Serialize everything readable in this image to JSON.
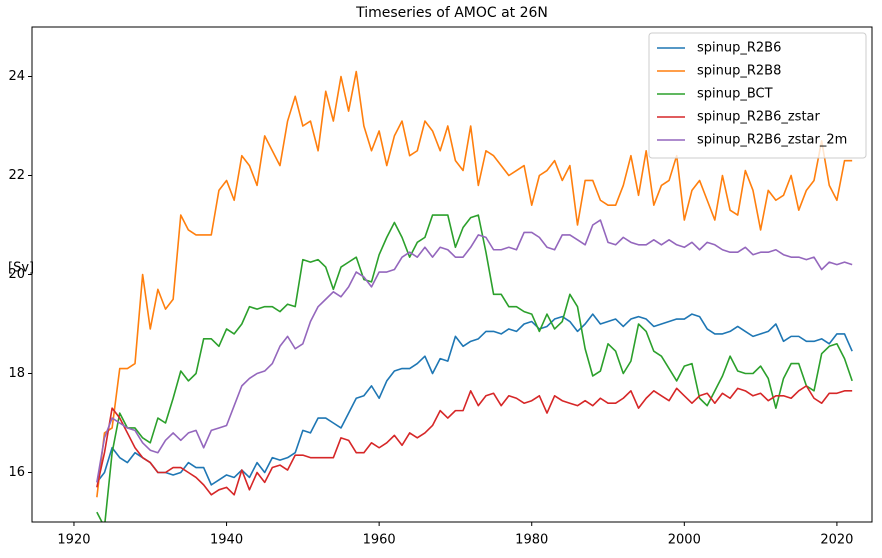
{
  "chart_data": {
    "type": "line",
    "title": "Timeseries of AMOC at 26N",
    "ylabel": "[Sv]",
    "x": [
      1923,
      1924,
      1925,
      1926,
      1927,
      1928,
      1929,
      1930,
      1931,
      1932,
      1933,
      1934,
      1935,
      1936,
      1937,
      1938,
      1939,
      1940,
      1941,
      1942,
      1943,
      1944,
      1945,
      1946,
      1947,
      1948,
      1949,
      1950,
      1951,
      1952,
      1953,
      1954,
      1955,
      1956,
      1957,
      1958,
      1959,
      1960,
      1961,
      1962,
      1963,
      1964,
      1965,
      1966,
      1967,
      1968,
      1969,
      1970,
      1971,
      1972,
      1973,
      1974,
      1975,
      1976,
      1977,
      1978,
      1979,
      1980,
      1981,
      1982,
      1983,
      1984,
      1985,
      1986,
      1987,
      1988,
      1989,
      1990,
      1991,
      1992,
      1993,
      1994,
      1995,
      1996,
      1997,
      1998,
      1999,
      2000,
      2001,
      2002,
      2003,
      2004,
      2005,
      2006,
      2007,
      2008,
      2009,
      2010,
      2011,
      2012,
      2013,
      2014,
      2015,
      2016,
      2017,
      2018,
      2019,
      2020,
      2021,
      2022
    ],
    "series": [
      {
        "name": "spinup_R2B6",
        "color": "#1f77b4",
        "values": [
          15.8,
          16.0,
          16.5,
          16.3,
          16.2,
          16.4,
          16.3,
          16.2,
          16.0,
          16.0,
          15.95,
          16.0,
          16.2,
          16.1,
          16.1,
          15.75,
          15.85,
          15.95,
          15.9,
          16.05,
          15.9,
          16.2,
          16.0,
          16.3,
          16.25,
          16.3,
          16.4,
          16.85,
          16.8,
          17.1,
          17.1,
          17.0,
          16.9,
          17.2,
          17.5,
          17.55,
          17.75,
          17.5,
          17.85,
          18.05,
          18.1,
          18.1,
          18.2,
          18.35,
          18.0,
          18.3,
          18.25,
          18.75,
          18.55,
          18.65,
          18.7,
          18.85,
          18.85,
          18.8,
          18.9,
          18.85,
          19.0,
          19.05,
          18.9,
          18.95,
          19.1,
          19.15,
          19.05,
          18.85,
          19.0,
          19.2,
          19.0,
          19.05,
          19.1,
          18.95,
          19.1,
          19.15,
          19.1,
          18.95,
          19.0,
          19.05,
          19.1,
          19.1,
          19.2,
          19.15,
          18.9,
          18.8,
          18.8,
          18.85,
          18.95,
          18.85,
          18.75,
          18.8,
          18.85,
          19.0,
          18.65,
          18.75,
          18.75,
          18.65,
          18.65,
          18.7,
          18.6,
          18.8,
          18.8,
          18.45
        ]
      },
      {
        "name": "spinup_R2B8",
        "color": "#ff7f0e",
        "values": [
          15.5,
          16.8,
          16.9,
          18.1,
          18.1,
          18.2,
          20.0,
          18.9,
          19.7,
          19.3,
          19.5,
          21.2,
          20.9,
          20.8,
          20.8,
          20.8,
          21.7,
          21.9,
          21.5,
          22.4,
          22.2,
          21.8,
          22.8,
          22.5,
          22.2,
          23.1,
          23.6,
          23.0,
          23.1,
          22.5,
          23.7,
          23.1,
          24.0,
          23.3,
          24.1,
          23.0,
          22.5,
          22.9,
          22.2,
          22.8,
          23.1,
          22.4,
          22.5,
          23.1,
          22.9,
          22.5,
          23.0,
          22.3,
          22.1,
          23.0,
          21.8,
          22.5,
          22.4,
          22.2,
          22.0,
          22.1,
          22.2,
          21.4,
          22.0,
          22.1,
          22.3,
          21.9,
          22.2,
          21.0,
          21.9,
          21.9,
          21.5,
          21.4,
          21.4,
          21.8,
          22.4,
          21.6,
          22.5,
          21.4,
          21.8,
          21.9,
          22.4,
          21.1,
          21.7,
          21.9,
          21.5,
          21.1,
          22.0,
          21.3,
          21.2,
          22.1,
          21.7,
          20.9,
          21.7,
          21.5,
          21.6,
          22.0,
          21.3,
          21.7,
          21.9,
          22.7,
          21.8,
          21.5,
          22.3,
          22.3
        ]
      },
      {
        "name": "spinup_BCT",
        "color": "#2ca02c",
        "values": [
          15.2,
          14.9,
          16.4,
          17.2,
          16.9,
          16.9,
          16.7,
          16.6,
          17.1,
          17.0,
          17.5,
          18.05,
          17.85,
          18.0,
          18.7,
          18.7,
          18.55,
          18.9,
          18.8,
          19.0,
          19.35,
          19.3,
          19.35,
          19.35,
          19.25,
          19.4,
          19.35,
          20.3,
          20.25,
          20.3,
          20.15,
          19.7,
          20.15,
          20.25,
          20.35,
          19.9,
          19.85,
          20.4,
          20.75,
          21.05,
          20.75,
          20.35,
          20.65,
          20.75,
          21.2,
          21.2,
          21.2,
          20.55,
          20.95,
          21.15,
          21.2,
          20.45,
          19.6,
          19.6,
          19.35,
          19.35,
          19.25,
          19.2,
          18.85,
          19.2,
          18.9,
          19.05,
          19.6,
          19.35,
          18.5,
          17.95,
          18.05,
          18.6,
          18.45,
          18.0,
          18.25,
          19.0,
          18.85,
          18.45,
          18.35,
          18.1,
          17.85,
          18.15,
          18.2,
          17.5,
          17.35,
          17.65,
          17.95,
          18.35,
          18.05,
          18.0,
          18.0,
          18.15,
          17.9,
          17.3,
          17.9,
          18.2,
          18.2,
          17.75,
          17.65,
          18.4,
          18.55,
          18.6,
          18.3,
          17.85
        ]
      },
      {
        "name": "spinup_R2B6_zstar",
        "color": "#d62728",
        "values": [
          15.7,
          16.4,
          17.3,
          17.1,
          16.8,
          16.5,
          16.3,
          16.2,
          16.0,
          16.0,
          16.1,
          16.1,
          16.0,
          15.9,
          15.75,
          15.55,
          15.65,
          15.7,
          15.55,
          16.05,
          15.65,
          16.0,
          15.8,
          16.1,
          16.15,
          16.05,
          16.35,
          16.35,
          16.3,
          16.3,
          16.3,
          16.3,
          16.7,
          16.65,
          16.4,
          16.4,
          16.6,
          16.5,
          16.6,
          16.75,
          16.55,
          16.8,
          16.7,
          16.8,
          16.95,
          17.25,
          17.1,
          17.25,
          17.25,
          17.65,
          17.35,
          17.55,
          17.6,
          17.35,
          17.55,
          17.5,
          17.4,
          17.45,
          17.55,
          17.2,
          17.55,
          17.45,
          17.4,
          17.35,
          17.45,
          17.35,
          17.5,
          17.4,
          17.4,
          17.5,
          17.65,
          17.3,
          17.5,
          17.65,
          17.55,
          17.45,
          17.7,
          17.55,
          17.4,
          17.55,
          17.6,
          17.4,
          17.6,
          17.5,
          17.7,
          17.65,
          17.55,
          17.6,
          17.45,
          17.55,
          17.55,
          17.5,
          17.65,
          17.75,
          17.5,
          17.4,
          17.6,
          17.6,
          17.65,
          17.65
        ]
      },
      {
        "name": "spinup_R2B6_zstar_2m",
        "color": "#9467bd",
        "values": [
          15.8,
          16.7,
          17.1,
          17.0,
          16.9,
          16.85,
          16.6,
          16.45,
          16.4,
          16.65,
          16.8,
          16.65,
          16.8,
          16.85,
          16.5,
          16.85,
          16.9,
          16.95,
          17.35,
          17.75,
          17.9,
          18.0,
          18.05,
          18.2,
          18.55,
          18.75,
          18.5,
          18.6,
          19.05,
          19.35,
          19.5,
          19.65,
          19.55,
          19.75,
          20.05,
          19.95,
          19.75,
          20.05,
          20.05,
          20.1,
          20.35,
          20.45,
          20.35,
          20.55,
          20.35,
          20.55,
          20.5,
          20.35,
          20.35,
          20.55,
          20.8,
          20.75,
          20.5,
          20.5,
          20.55,
          20.5,
          20.85,
          20.85,
          20.75,
          20.55,
          20.5,
          20.8,
          20.8,
          20.7,
          20.6,
          21.0,
          21.1,
          20.65,
          20.6,
          20.75,
          20.65,
          20.6,
          20.6,
          20.7,
          20.6,
          20.7,
          20.6,
          20.55,
          20.65,
          20.5,
          20.65,
          20.6,
          20.5,
          20.45,
          20.45,
          20.55,
          20.4,
          20.45,
          20.45,
          20.5,
          20.4,
          20.35,
          20.35,
          20.3,
          20.35,
          20.1,
          20.25,
          20.2,
          20.25,
          20.2
        ]
      }
    ],
    "xlim": [
      1914.5,
      2024.6
    ],
    "xticks": [
      1920,
      1940,
      1960,
      1980,
      2000,
      2020
    ],
    "ylim": [
      15,
      25
    ],
    "yticks": [
      16,
      18,
      20,
      22,
      24
    ],
    "legend": "upper right"
  }
}
